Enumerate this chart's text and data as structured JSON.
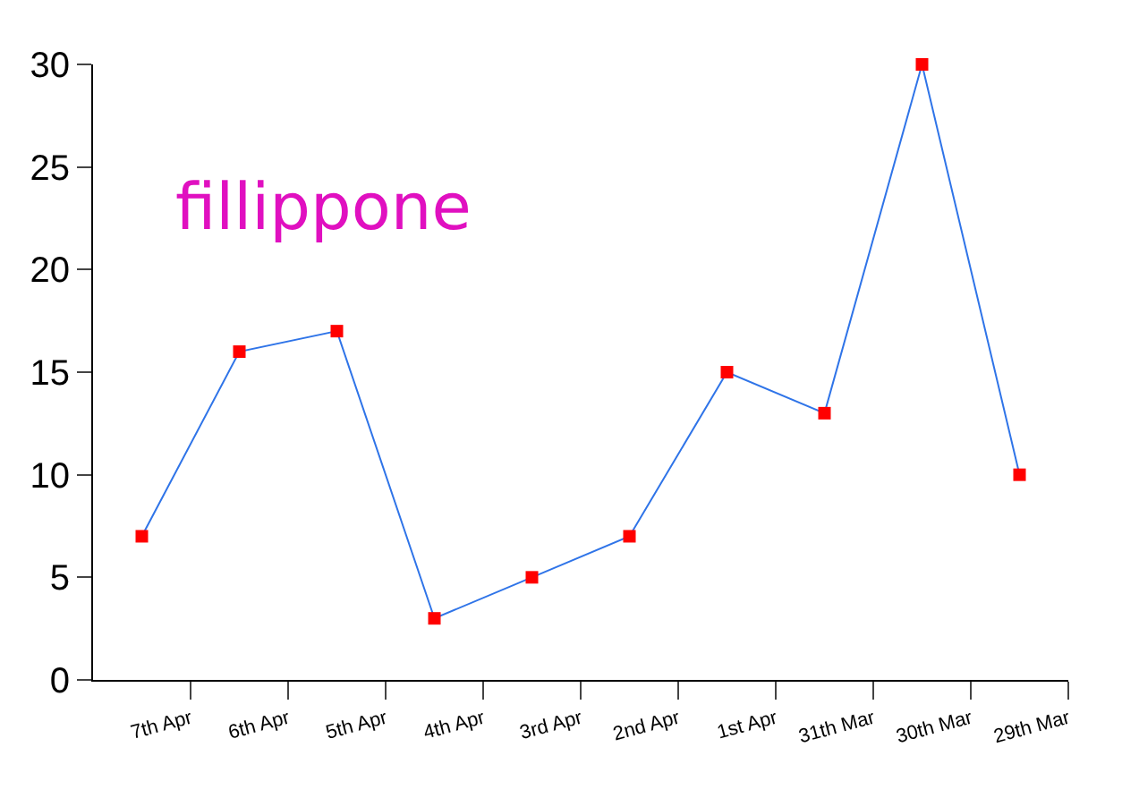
{
  "chart_data": {
    "type": "line",
    "categories": [
      "7th Apr",
      "6th Apr",
      "5th Apr",
      "4th Apr",
      "3rd Apr",
      "2nd Apr",
      "1st Apr",
      "31th Mar",
      "30th Mar",
      "29th Mar"
    ],
    "series": [
      {
        "color": "#2f74e8",
        "values": [
          7,
          16,
          17,
          3,
          5,
          7,
          15,
          13,
          30,
          10
        ]
      }
    ],
    "marker": "square",
    "line_style": "solid",
    "ylim": [
      0,
      30
    ],
    "yticks": [
      0,
      5,
      10,
      15,
      20,
      25,
      30
    ],
    "annotations": [
      "fillippone"
    ]
  }
}
